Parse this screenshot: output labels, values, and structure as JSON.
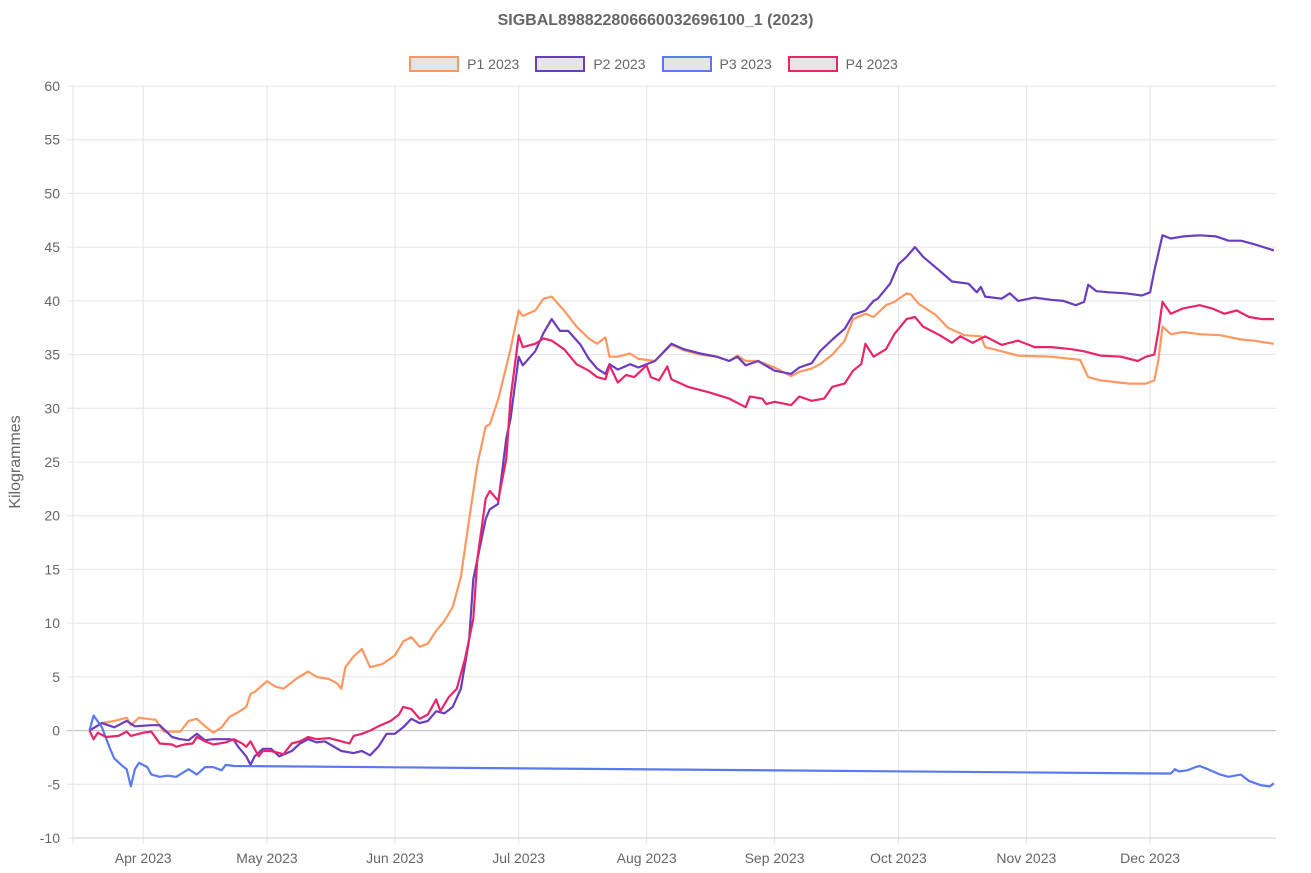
{
  "chart_data": {
    "type": "line",
    "title": "SIGBAL898822806660032696100_1 (2023)",
    "xlabel": "",
    "ylabel": "Kilogrammes",
    "x_unit": "day of year 2023",
    "xlim": [
      74,
      365.5
    ],
    "ylim": [
      -10,
      60
    ],
    "y_ticks": [
      -10,
      -5,
      0,
      5,
      10,
      15,
      20,
      25,
      30,
      35,
      40,
      45,
      50,
      55,
      60
    ],
    "x_ticks": [
      {
        "day": 91,
        "label": "Apr 2023"
      },
      {
        "day": 121,
        "label": "May 2023"
      },
      {
        "day": 152,
        "label": "Jun 2023"
      },
      {
        "day": 182,
        "label": "Jul 2023"
      },
      {
        "day": 213,
        "label": "Aug 2023"
      },
      {
        "day": 244,
        "label": "Sep 2023"
      },
      {
        "day": 274,
        "label": "Oct 2023"
      },
      {
        "day": 305,
        "label": "Nov 2023"
      },
      {
        "day": 335,
        "label": "Dec 2023"
      }
    ],
    "grid": true,
    "legend_position": "top",
    "series": [
      {
        "name": "P1 2023",
        "color": "#ff9860",
        "x": [
          78,
          81,
          84,
          87,
          88,
          90,
          94,
          96,
          98,
          100,
          102,
          104,
          106,
          108,
          110,
          112,
          114,
          116,
          117,
          118,
          121,
          123,
          125,
          128,
          131,
          133,
          136,
          138,
          139,
          140,
          142,
          144,
          146,
          149,
          152,
          154,
          156,
          158,
          160,
          162,
          164,
          166,
          168,
          170,
          172,
          174,
          175,
          177,
          180,
          182,
          183,
          186,
          188,
          190,
          193,
          196,
          199,
          201,
          203,
          204,
          206,
          209,
          211,
          215,
          219,
          222,
          226,
          230,
          233,
          235,
          237,
          240,
          244,
          248,
          250,
          253,
          255,
          258,
          261,
          263,
          266,
          268,
          271,
          273,
          276,
          277,
          279,
          283,
          286,
          290,
          294,
          295,
          299,
          303,
          311,
          318,
          320,
          323,
          330,
          334,
          336,
          337,
          338,
          340,
          343,
          347,
          352,
          357,
          360,
          365
        ],
        "values": [
          0,
          0.7,
          0.9,
          1.2,
          0.5,
          1.2,
          1.0,
          -0.1,
          -0.1,
          -0.1,
          0.9,
          1.1,
          0.4,
          -0.2,
          0.3,
          1.3,
          1.7,
          2.2,
          3.4,
          3.6,
          4.6,
          4.1,
          3.9,
          4.8,
          5.5,
          5.0,
          4.8,
          4.4,
          3.9,
          5.9,
          6.9,
          7.6,
          5.9,
          6.2,
          7.0,
          8.3,
          8.7,
          7.8,
          8.1,
          9.3,
          10.2,
          11.5,
          14.3,
          19.7,
          24.8,
          28.3,
          28.5,
          30.8,
          35.5,
          39.1,
          38.6,
          39.1,
          40.2,
          40.4,
          39.1,
          37.6,
          36.5,
          36.0,
          36.6,
          34.8,
          34.8,
          35.1,
          34.6,
          34.4,
          35.9,
          35.4,
          35.0,
          34.8,
          34.4,
          34.9,
          34.4,
          34.4,
          33.8,
          33.0,
          33.4,
          33.7,
          34.1,
          35.0,
          36.3,
          38.3,
          38.8,
          38.5,
          39.6,
          39.9,
          40.7,
          40.6,
          39.7,
          38.7,
          37.5,
          36.8,
          36.7,
          35.7,
          35.3,
          34.9,
          34.8,
          34.5,
          32.9,
          32.6,
          32.3,
          32.3,
          32.6,
          34.5,
          37.6,
          36.9,
          37.1,
          36.9,
          36.8,
          36.4,
          36.3,
          36.0
        ]
      },
      {
        "name": "P2 2023",
        "color": "#6a3dbf",
        "x": [
          78,
          81,
          84,
          87,
          89,
          93,
          95,
          98,
          100,
          102,
          104,
          106,
          108,
          112,
          113,
          114,
          116,
          117,
          118,
          120,
          122,
          124,
          127,
          129,
          131,
          133,
          135,
          139,
          142,
          144,
          146,
          148,
          150,
          152,
          154,
          156,
          158,
          160,
          162,
          164,
          166,
          168,
          170,
          171,
          174,
          175,
          177,
          179,
          180,
          182,
          183,
          186,
          188,
          190,
          192,
          194,
          197,
          199,
          201,
          203,
          204,
          206,
          209,
          211,
          215,
          219,
          222,
          226,
          230,
          233,
          235,
          237,
          240,
          244,
          248,
          250,
          253,
          255,
          258,
          261,
          263,
          266,
          268,
          269,
          272,
          274,
          276,
          278,
          280,
          284,
          287,
          291,
          293,
          294,
          295,
          299,
          301,
          303,
          307,
          311,
          314,
          317,
          319,
          320,
          322,
          325,
          329,
          333,
          335,
          336,
          338,
          340,
          343,
          347,
          351,
          354,
          357,
          360,
          365
        ],
        "values": [
          0,
          0.7,
          0.3,
          0.9,
          0.4,
          0.5,
          0.5,
          -0.6,
          -0.8,
          -0.9,
          -0.3,
          -0.9,
          -0.8,
          -0.8,
          -0.9,
          -1.5,
          -2.4,
          -3.2,
          -2.4,
          -1.7,
          -1.7,
          -2.4,
          -1.9,
          -1.2,
          -0.8,
          -1.1,
          -1.0,
          -1.9,
          -2.1,
          -1.9,
          -2.3,
          -1.5,
          -0.3,
          -0.3,
          0.3,
          1.1,
          0.7,
          0.9,
          1.8,
          1.6,
          2.2,
          3.9,
          8.5,
          14.1,
          19.7,
          20.6,
          21.1,
          27.2,
          29.0,
          34.8,
          34.0,
          35.3,
          37.0,
          38.3,
          37.2,
          37.2,
          35.9,
          34.6,
          33.7,
          33.2,
          34.1,
          33.6,
          34.1,
          33.8,
          34.4,
          36.0,
          35.5,
          35.1,
          34.8,
          34.4,
          34.8,
          34.0,
          34.4,
          33.5,
          33.2,
          33.8,
          34.2,
          35.3,
          36.4,
          37.4,
          38.7,
          39.1,
          40.0,
          40.2,
          41.6,
          43.4,
          44.1,
          45.0,
          44.1,
          42.8,
          41.8,
          41.6,
          40.8,
          41.3,
          40.4,
          40.2,
          40.7,
          40.0,
          40.3,
          40.1,
          40.0,
          39.6,
          39.9,
          41.5,
          40.9,
          40.8,
          40.7,
          40.5,
          40.8,
          42.8,
          46.1,
          45.8,
          46.0,
          46.1,
          46.0,
          45.6,
          45.6,
          45.3,
          44.7
        ]
      },
      {
        "name": "P3 2023",
        "color": "#5a78f0",
        "x": [
          78,
          79,
          81,
          83,
          84,
          86,
          87,
          88,
          89,
          90,
          92,
          93,
          95,
          97,
          99,
          102,
          104,
          106,
          108,
          110,
          111,
          113,
          338,
          340,
          341,
          342,
          344,
          346,
          347,
          349,
          352,
          354,
          357,
          359,
          362,
          364,
          365
        ],
        "values": [
          0,
          1.4,
          0.3,
          -1.7,
          -2.6,
          -3.3,
          -3.6,
          -5.2,
          -3.6,
          -3.0,
          -3.4,
          -4.1,
          -4.3,
          -4.2,
          -4.3,
          -3.6,
          -4.1,
          -3.4,
          -3.4,
          -3.7,
          -3.2,
          -3.3,
          -4.0,
          -4.0,
          -3.6,
          -3.8,
          -3.7,
          -3.4,
          -3.3,
          -3.6,
          -4.1,
          -4.3,
          -4.1,
          -4.7,
          -5.1,
          -5.2,
          -4.9
        ]
      },
      {
        "name": "P4 2023",
        "color": "#e8246a",
        "x": [
          78,
          79,
          80,
          82,
          85,
          87,
          88,
          90,
          91,
          93,
          95,
          98,
          99,
          101,
          103,
          104,
          106,
          108,
          111,
          113,
          115,
          116,
          117,
          119,
          120,
          122,
          125,
          127,
          129,
          131,
          133,
          136,
          139,
          141,
          142,
          144,
          146,
          148,
          151,
          153,
          154,
          156,
          158,
          160,
          162,
          163,
          165,
          167,
          169,
          171,
          172,
          174,
          175,
          177,
          179,
          180,
          182,
          183,
          186,
          188,
          190,
          193,
          196,
          199,
          201,
          203,
          204,
          206,
          208,
          210,
          213,
          214,
          216,
          218,
          219,
          223,
          228,
          233,
          237,
          238,
          241,
          242,
          244,
          248,
          250,
          253,
          256,
          258,
          261,
          263,
          265,
          266,
          268,
          271,
          273,
          276,
          278,
          280,
          284,
          287,
          289,
          292,
          295,
          299,
          303,
          307,
          311,
          316,
          319,
          323,
          328,
          332,
          334,
          336,
          337,
          338,
          340,
          343,
          347,
          350,
          353,
          356,
          359,
          362,
          365
        ],
        "values": [
          0,
          -0.8,
          -0.2,
          -0.6,
          -0.5,
          -0.1,
          -0.5,
          -0.3,
          -0.2,
          -0.1,
          -1.2,
          -1.3,
          -1.5,
          -1.3,
          -1.2,
          -0.6,
          -1.0,
          -1.3,
          -1.1,
          -0.8,
          -1.2,
          -1.5,
          -1.0,
          -2.4,
          -1.9,
          -1.9,
          -2.2,
          -1.2,
          -1.0,
          -0.6,
          -0.8,
          -0.7,
          -1.0,
          -1.2,
          -0.5,
          -0.3,
          0.0,
          0.4,
          0.9,
          1.5,
          2.2,
          2.0,
          1.1,
          1.5,
          2.9,
          1.8,
          3.1,
          3.9,
          6.7,
          10.4,
          16.0,
          21.6,
          22.3,
          21.4,
          25.3,
          30.9,
          36.8,
          35.7,
          36.0,
          36.5,
          36.3,
          35.5,
          34.1,
          33.5,
          32.9,
          32.7,
          34.0,
          32.4,
          33.1,
          32.9,
          34.0,
          32.9,
          32.6,
          33.9,
          32.7,
          32.0,
          31.5,
          30.9,
          30.1,
          31.1,
          30.9,
          30.4,
          30.6,
          30.3,
          31.1,
          30.7,
          30.9,
          32.0,
          32.3,
          33.5,
          34.1,
          36.0,
          34.8,
          35.5,
          36.9,
          38.3,
          38.5,
          37.6,
          36.8,
          36.1,
          36.7,
          36.1,
          36.7,
          35.9,
          36.3,
          35.7,
          35.7,
          35.5,
          35.3,
          34.9,
          34.8,
          34.4,
          34.8,
          35.0,
          37.2,
          39.9,
          38.8,
          39.3,
          39.6,
          39.3,
          38.8,
          39.1,
          38.5,
          38.3,
          38.3
        ]
      }
    ]
  }
}
